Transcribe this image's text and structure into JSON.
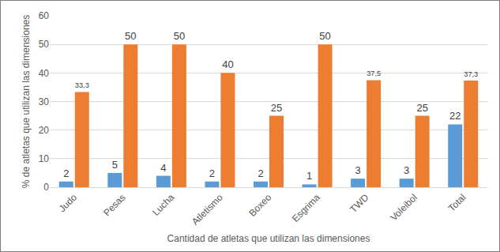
{
  "chart_data": {
    "type": "bar",
    "x_label": "Cantidad de atletas que utilizan las dimensiones",
    "y_label": "% de atletas que utilizan las dimensiones",
    "categories": [
      "Judo",
      "Pesas",
      "Lucha",
      "Atletismo",
      "Boxeo",
      "Esgrima",
      "TWD",
      "Voleibol",
      "Total"
    ],
    "series": [
      {
        "color": "#5b9bd5",
        "values": [
          2,
          5,
          4,
          2,
          2,
          1,
          3,
          3,
          22
        ]
      },
      {
        "color": "#ed7d31",
        "values": [
          33.3,
          50,
          50,
          40,
          25,
          50,
          37.5,
          25,
          37.3
        ],
        "value_labels": [
          "33,3",
          "50",
          "50",
          "40",
          "25",
          "50",
          "37,5",
          "25",
          "37,3"
        ]
      }
    ],
    "ylim": [
      0,
      60
    ],
    "yticks": [
      0,
      10,
      20,
      30,
      40,
      50,
      60
    ],
    "grid": true,
    "data_labels": true
  }
}
